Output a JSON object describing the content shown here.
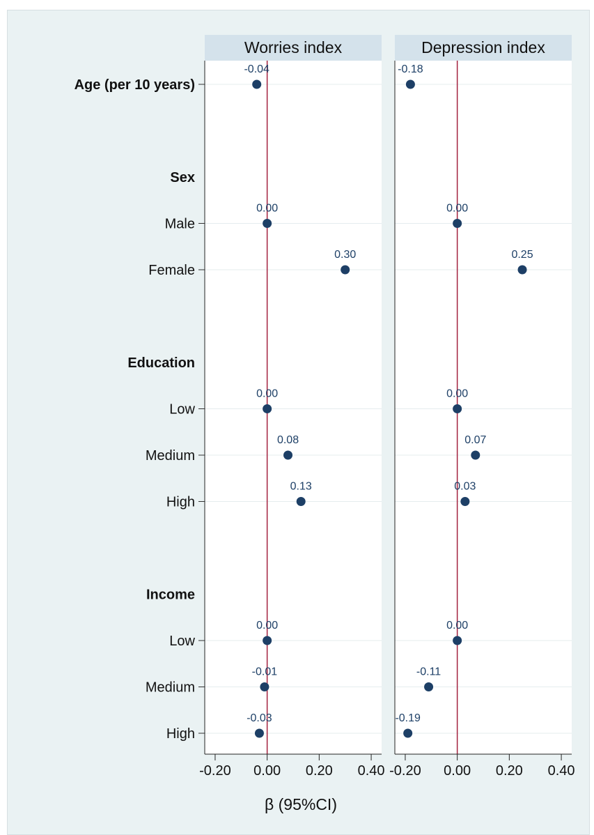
{
  "figure_caption_fragment": "",
  "chart_data": {
    "type": "scatter",
    "xlabel": "β (95%CI)",
    "x_ticks": [
      -0.2,
      0.0,
      0.2,
      0.4
    ],
    "x_tick_labels": [
      "-0.20",
      "0.00",
      "0.20",
      "0.40"
    ],
    "xlim": [
      -0.24,
      0.44
    ],
    "reference_line_x": 0,
    "colors": {
      "background": "#eaf2f3",
      "plot_background": "#ffffff",
      "strip": "#d4e2eb",
      "point": "#1d3f66",
      "label": "#1d3f66",
      "reference_line": "#a3213f",
      "gridline": "#e5ecee"
    },
    "rows": [
      {
        "label": "Age (per 10 years)",
        "bold": true,
        "has_data": true
      },
      {
        "label": "",
        "bold": false,
        "has_data": false
      },
      {
        "label": "Sex",
        "bold": true,
        "has_data": false
      },
      {
        "label": "Male",
        "bold": false,
        "has_data": true
      },
      {
        "label": "Female",
        "bold": false,
        "has_data": true
      },
      {
        "label": "",
        "bold": false,
        "has_data": false
      },
      {
        "label": "Education",
        "bold": true,
        "has_data": false
      },
      {
        "label": "Low",
        "bold": false,
        "has_data": true
      },
      {
        "label": "Medium",
        "bold": false,
        "has_data": true
      },
      {
        "label": "High",
        "bold": false,
        "has_data": true
      },
      {
        "label": "",
        "bold": false,
        "has_data": false
      },
      {
        "label": "Income",
        "bold": true,
        "has_data": false
      },
      {
        "label": "Low",
        "bold": false,
        "has_data": true
      },
      {
        "label": "Medium",
        "bold": false,
        "has_data": true
      },
      {
        "label": "High",
        "bold": false,
        "has_data": true
      }
    ],
    "panels": [
      {
        "title": "Worries index",
        "points": [
          {
            "row": 0,
            "value": -0.04,
            "label": "-0.04"
          },
          {
            "row": 3,
            "value": 0.0,
            "label": "0.00"
          },
          {
            "row": 4,
            "value": 0.3,
            "label": "0.30"
          },
          {
            "row": 7,
            "value": 0.0,
            "label": "0.00"
          },
          {
            "row": 8,
            "value": 0.08,
            "label": "0.08"
          },
          {
            "row": 9,
            "value": 0.13,
            "label": "0.13"
          },
          {
            "row": 12,
            "value": 0.0,
            "label": "0.00"
          },
          {
            "row": 13,
            "value": -0.01,
            "label": "-0.01"
          },
          {
            "row": 14,
            "value": -0.03,
            "label": "-0.03"
          }
        ]
      },
      {
        "title": "Depression index",
        "points": [
          {
            "row": 0,
            "value": -0.18,
            "label": "-0.18"
          },
          {
            "row": 3,
            "value": 0.0,
            "label": "0.00"
          },
          {
            "row": 4,
            "value": 0.25,
            "label": "0.25"
          },
          {
            "row": 7,
            "value": 0.0,
            "label": "0.00"
          },
          {
            "row": 8,
            "value": 0.07,
            "label": "0.07"
          },
          {
            "row": 9,
            "value": 0.03,
            "label": "0.03"
          },
          {
            "row": 12,
            "value": 0.0,
            "label": "0.00"
          },
          {
            "row": 13,
            "value": -0.11,
            "label": "-0.11"
          },
          {
            "row": 14,
            "value": -0.19,
            "label": "-0.19"
          }
        ]
      }
    ]
  }
}
